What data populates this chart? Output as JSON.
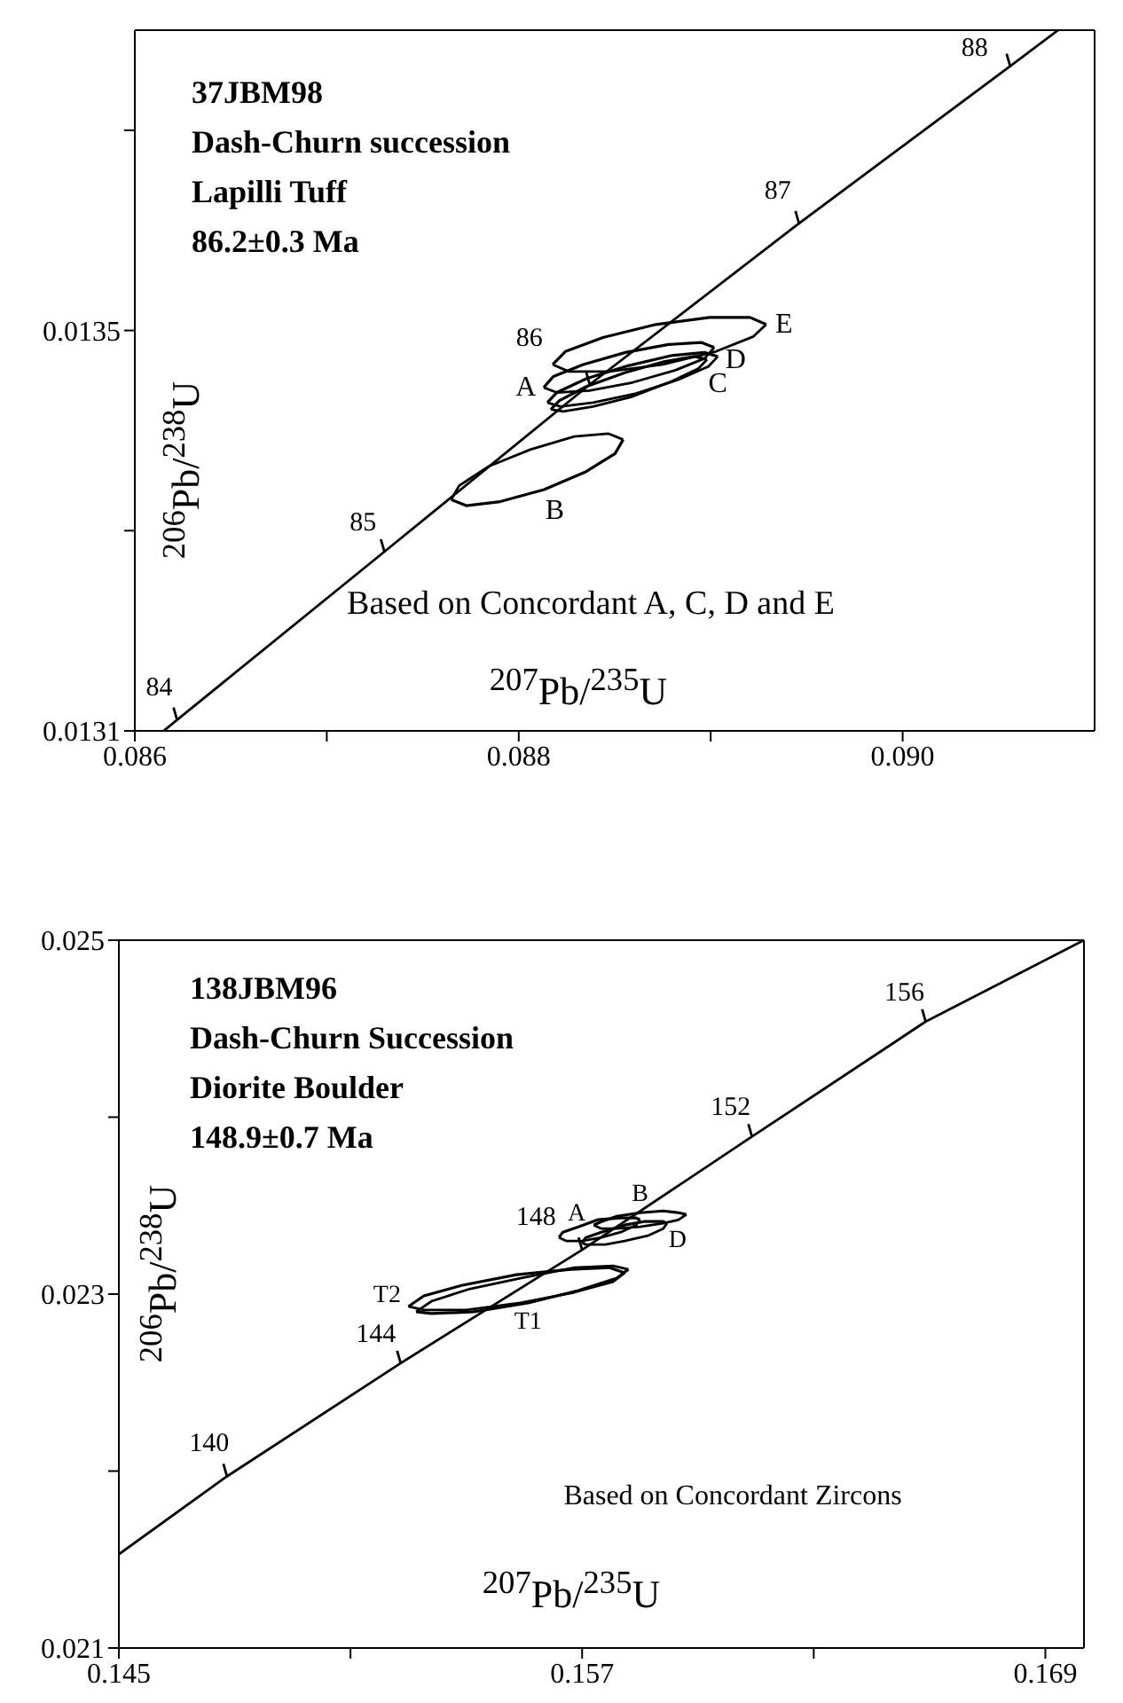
{
  "chart_data": [
    {
      "type": "line",
      "title": "37JBM98",
      "subtitle": "Dash-Churn succession",
      "xlabel": "$^{207}$Pb/$^{235}$U",
      "ylabel": "$^{206}$Pb/$^{238}$U",
      "xlim": [
        0.086,
        0.091
      ],
      "xticks": [
        0.086,
        {
          "value": 0.087,
          "label": null
        },
        0.088,
        {
          "value": 0.089,
          "label": null
        },
        {
          "value": 0.09,
          "label": "0.090"
        }
      ],
      "ylim": [
        0.0131,
        0.0138
      ],
      "yticks": [
        0.0131,
        {
          "value": 0.0133,
          "label": null
        },
        0.0135,
        {
          "value": 0.0137,
          "label": null
        }
      ],
      "series": [
        {
          "color": "#000000",
          "x": [
            0.08615,
            0.08622,
            0.0873,
            0.08837,
            0.08946,
            0.09056,
            0.09081
          ],
          "values": [
            0.0131,
            0.013111,
            0.013279,
            0.013446,
            0.013607,
            0.013764,
            0.0138
          ]
        },
        {
          "name": "A",
          "color": "#000000",
          "x": [
            0.08813,
            0.08818,
            0.088336,
            0.088556,
            0.08878,
            0.08895,
            0.089018
          ],
          "values": [
            0.013443,
            0.013454,
            0.013466,
            0.013478,
            0.013486,
            0.013488,
            0.013483
          ]
        },
        {
          "color": "#000000",
          "x": [
            0.08813,
            0.088198,
            0.088368,
            0.088592,
            0.088812,
            0.088968,
            0.089018
          ],
          "values": [
            0.013443,
            0.013438,
            0.01344,
            0.013448,
            0.01346,
            0.013472,
            0.013483
          ]
        },
        {
          "color": "#000000",
          "x": [
            0.087648,
            0.08769,
            0.087841,
            0.08806,
            0.088289,
            0.088466,
            0.088544
          ],
          "values": [
            0.013331,
            0.013345,
            0.013364,
            0.013381,
            0.013394,
            0.013397,
            0.013391
          ]
        },
        {
          "name": "B",
          "color": "#000000",
          "x": [
            0.087648,
            0.087726,
            0.087903,
            0.088132,
            0.088351,
            0.088502,
            0.088544
          ],
          "values": [
            0.013331,
            0.013325,
            0.013329,
            0.013341,
            0.013359,
            0.013377,
            0.013391
          ]
        },
        {
          "name": "C",
          "color": "#000000",
          "x": [
            0.088167,
            0.088212,
            0.088353,
            0.088555,
            0.088761,
            0.088916,
            0.088981
          ],
          "values": [
            0.013421,
            0.01343,
            0.013444,
            0.013458,
            0.013469,
            0.013474,
            0.013471
          ]
        },
        {
          "color": "#000000",
          "x": [
            0.088167,
            0.088232,
            0.088387,
            0.088593,
            0.088795,
            0.088936,
            0.088981
          ],
          "values": [
            0.013421,
            0.013419,
            0.013424,
            0.013434,
            0.013449,
            0.013462,
            0.013471
          ]
        },
        {
          "name": "D",
          "color": "#000000",
          "x": [
            0.088149,
            0.088198,
            0.088354,
            0.088574,
            0.088798,
            0.088968,
            0.089037
          ],
          "values": [
            0.013428,
            0.013438,
            0.013452,
            0.013465,
            0.013475,
            0.013478,
            0.013474
          ]
        },
        {
          "color": "#000000",
          "x": [
            0.088149,
            0.088218,
            0.088388,
            0.088612,
            0.088832,
            0.088988,
            0.089037
          ],
          "values": [
            0.013428,
            0.013424,
            0.013428,
            0.013437,
            0.013451,
            0.013464,
            0.013474
          ]
        },
        {
          "name": "E",
          "color": "#000000",
          "x": [
            0.088177,
            0.088243,
            0.088439,
            0.088715,
            0.088995,
            0.089205,
            0.089289
          ],
          "values": [
            0.013466,
            0.013479,
            0.013493,
            0.013506,
            0.013513,
            0.013513,
            0.013506
          ]
        },
        {
          "color": "#000000",
          "x": [
            0.088177,
            0.088261,
            0.088471,
            0.088752,
            0.089027,
            0.089223,
            0.089289
          ],
          "values": [
            0.013466,
            0.013459,
            0.013459,
            0.013466,
            0.013479,
            0.013494,
            0.013506
          ]
        }
      ],
      "annotations": [
        "Lapilli Tuff",
        "86.2±0.3 Ma",
        "Based on Concordant A, C, D and E",
        {
          "text": "84",
          "x": 0.08622,
          "y": 0.013111
        },
        {
          "text": "85",
          "x": 0.0873,
          "y": 0.013279
        },
        {
          "text": "86",
          "x": 0.08837,
          "y": 0.013446
        },
        {
          "text": "87",
          "x": 0.08946,
          "y": 0.013607
        },
        {
          "text": "88",
          "x": 0.09056,
          "y": 0.013764
        }
      ]
    },
    {
      "type": "line",
      "title": "138JBM96",
      "subtitle": "Dash-Churn Succession",
      "xlabel": "$^{207}$Pb/$^{235}$U",
      "ylabel": "$^{206}$Pb/$^{238}$U",
      "xlim": [
        0.145,
        0.17
      ],
      "xticks": [
        0.145,
        {
          "value": 0.151,
          "label": null
        },
        0.157,
        {
          "value": 0.163,
          "label": null
        },
        0.169
      ],
      "ylim": [
        0.021,
        0.025
      ],
      "yticks": [
        0.021,
        {
          "value": 0.022,
          "label": null
        },
        0.023,
        {
          "value": 0.024,
          "label": null
        },
        0.025
      ],
      "series": [
        {
          "color": "#000000",
          "x": [
            0.145,
            0.1478,
            0.1523,
            0.157,
            0.1614,
            0.1659,
            0.17
          ],
          "values": [
            0.02153,
            0.02197,
            0.02261,
            0.02325,
            0.02389,
            0.02454,
            0.025
          ]
        },
        {
          "name": "T2",
          "color": "#000000",
          "x": [
            0.1525,
            0.1529,
            0.1539,
            0.1553,
            0.1567,
            0.1577,
            0.1581
          ],
          "values": [
            0.02293,
            0.02299,
            0.02305,
            0.02311,
            0.02314,
            0.02315,
            0.02312
          ]
        },
        {
          "color": "#000000",
          "x": [
            0.1525,
            0.1529,
            0.154,
            0.1554,
            0.1568,
            0.1578,
            0.1581
          ],
          "values": [
            0.02293,
            0.02291,
            0.02291,
            0.02295,
            0.02301,
            0.02307,
            0.02312
          ]
        },
        {
          "color": "#000000",
          "x": [
            0.1527,
            0.1531,
            0.1541,
            0.1554,
            0.1568,
            0.1578,
            0.1582
          ],
          "values": [
            0.0229,
            0.02296,
            0.02303,
            0.02309,
            0.02315,
            0.02316,
            0.02314
          ]
        },
        {
          "name": "T1",
          "color": "#000000",
          "x": [
            0.1527,
            0.1531,
            0.1542,
            0.1556,
            0.1569,
            0.1579,
            0.1582
          ],
          "values": [
            0.0229,
            0.02289,
            0.0229,
            0.02295,
            0.02302,
            0.02309,
            0.02314
          ]
        },
        {
          "name": "A",
          "color": "#000000",
          "x": [
            0.1564,
            0.1565,
            0.1569,
            0.1574,
            0.158,
            0.1584,
            0.1585
          ],
          "values": [
            0.02332,
            0.02335,
            0.02338,
            0.02342,
            0.02343,
            0.02343,
            0.02342
          ]
        },
        {
          "color": "#000000",
          "x": [
            0.1564,
            0.1566,
            0.157,
            0.1575,
            0.158,
            0.1584,
            0.1585
          ],
          "values": [
            0.02332,
            0.0233,
            0.0233,
            0.02332,
            0.02335,
            0.02339,
            0.02342
          ]
        },
        {
          "name": "B",
          "color": "#000000",
          "x": [
            0.1573,
            0.1575,
            0.1579,
            0.1585,
            0.1591,
            0.1595,
            0.1597
          ],
          "values": [
            0.02339,
            0.02341,
            0.02344,
            0.02346,
            0.02347,
            0.02346,
            0.02345
          ]
        },
        {
          "color": "#000000",
          "x": [
            0.1573,
            0.1575,
            0.1579,
            0.1585,
            0.1591,
            0.1595,
            0.1597
          ],
          "values": [
            0.02339,
            0.02337,
            0.02337,
            0.02338,
            0.0234,
            0.02342,
            0.02345
          ]
        },
        {
          "name": "D",
          "color": "#000000",
          "x": [
            0.157,
            0.1571,
            0.1575,
            0.1581,
            0.1586,
            0.1591,
            0.1592
          ],
          "values": [
            0.02329,
            0.02332,
            0.02335,
            0.02339,
            0.02341,
            0.02341,
            0.0234
          ]
        },
        {
          "color": "#000000",
          "x": [
            0.157,
            0.1571,
            0.1576,
            0.1581,
            0.1587,
            0.1591,
            0.1592
          ],
          "values": [
            0.02329,
            0.02328,
            0.02328,
            0.0233,
            0.02333,
            0.02337,
            0.0234
          ]
        }
      ],
      "annotations": [
        "Diorite Boulder",
        "148.9±0.7 Ma",
        "Based on Concordant Zircons",
        {
          "text": "140",
          "x": 0.1478,
          "y": 0.02197
        },
        {
          "text": "144",
          "x": 0.1523,
          "y": 0.02261
        },
        {
          "text": "148",
          "x": 0.157,
          "y": 0.02325
        },
        {
          "text": "152",
          "x": 0.1614,
          "y": 0.02389
        },
        {
          "text": "156",
          "x": 0.1659,
          "y": 0.02454
        }
      ]
    }
  ]
}
